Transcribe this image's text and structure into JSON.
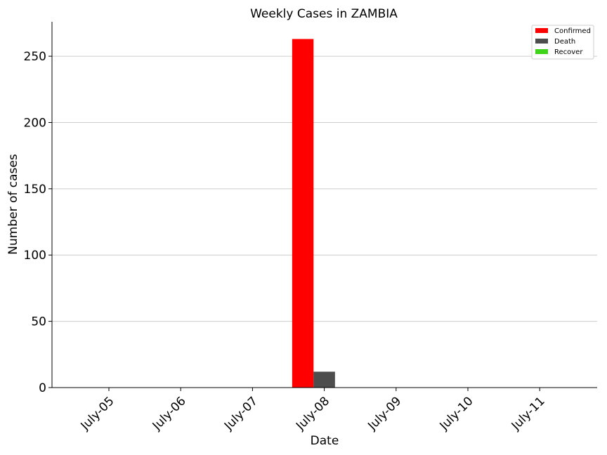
{
  "chart_data": {
    "type": "bar",
    "title": "Weekly Cases in ZAMBIA",
    "xlabel": "Date",
    "ylabel": "Number of cases",
    "categories": [
      "July-05",
      "July-06",
      "July-07",
      "July-08",
      "July-09",
      "July-10",
      "July-11"
    ],
    "series": [
      {
        "name": "Confirmed",
        "color": "#ff0000",
        "values": [
          0,
          0,
          0,
          263,
          0,
          0,
          0
        ]
      },
      {
        "name": "Death",
        "color": "#4d4d4d",
        "values": [
          0,
          0,
          0,
          12,
          0,
          0,
          0
        ]
      },
      {
        "name": "Recover",
        "color": "#3fd41a",
        "values": [
          0,
          0,
          0,
          0,
          0,
          0,
          0
        ]
      }
    ],
    "ylim": [
      0,
      276
    ],
    "yticks": [
      0,
      50,
      100,
      150,
      200,
      250
    ],
    "grid": "horizontal",
    "legend": "top-right"
  }
}
